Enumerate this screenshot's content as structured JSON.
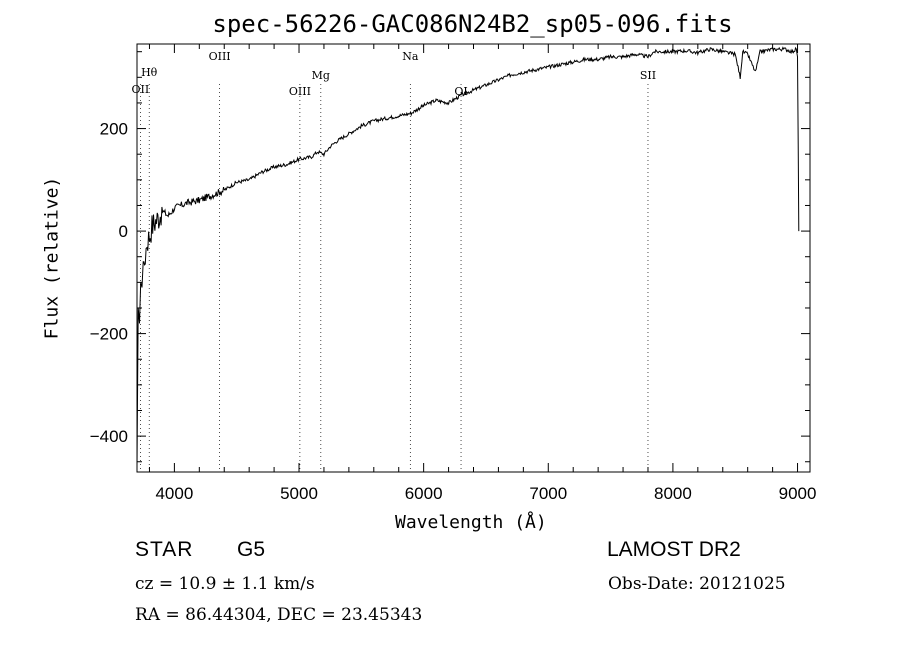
{
  "chart_data": {
    "type": "line",
    "title": "spec-56226-GAC086N24B2_sp05-096.fits",
    "xlabel": "Wavelength (Å)",
    "ylabel": "Flux (relative)",
    "xlim": [
      3700,
      9100
    ],
    "ylim": [
      -470,
      365
    ],
    "xticks": [
      4000,
      5000,
      6000,
      7000,
      8000,
      9000
    ],
    "xtick_labels": [
      "4000",
      "5000",
      "6000",
      "7000",
      "8000",
      "9000"
    ],
    "yticks": [
      -400,
      -200,
      0,
      200
    ],
    "ytick_labels": [
      "−400",
      "−200",
      "0",
      "200"
    ],
    "grid": false,
    "series": [
      {
        "x": [
          3700,
          3705,
          3710,
          3720,
          3730,
          3740,
          3750,
          3760,
          3780,
          3800,
          3820,
          3850,
          3880,
          3900,
          3950,
          4000,
          4050,
          4100,
          4200,
          4300,
          4400,
          4500,
          4600,
          4700,
          4800,
          4900,
          5000,
          5100,
          5150,
          5200,
          5250,
          5300,
          5400,
          5500,
          5600,
          5700,
          5800,
          5900,
          6000,
          6100,
          6200,
          6300,
          6400,
          6500,
          6600,
          6700,
          6800,
          6900,
          7000,
          7100,
          7200,
          7300,
          7400,
          7500,
          7600,
          7700,
          7800,
          7850,
          7900,
          8000,
          8100,
          8200,
          8300,
          8400,
          8500,
          8540,
          8560,
          8600,
          8662,
          8700,
          8800,
          8900,
          8960,
          8990,
          9000,
          9010
        ],
        "y": [
          -460,
          -300,
          -150,
          -180,
          -100,
          -110,
          -60,
          -60,
          -20,
          -10,
          10,
          20,
          30,
          40,
          30,
          45,
          50,
          55,
          60,
          70,
          80,
          95,
          100,
          115,
          125,
          130,
          140,
          145,
          155,
          150,
          165,
          175,
          190,
          205,
          215,
          220,
          225,
          230,
          245,
          255,
          250,
          265,
          275,
          285,
          295,
          305,
          310,
          315,
          320,
          325,
          330,
          335,
          335,
          340,
          340,
          345,
          340,
          350,
          350,
          350,
          352,
          348,
          355,
          350,
          345,
          300,
          350,
          345,
          310,
          350,
          355,
          355,
          350,
          355,
          340,
          0
        ]
      }
    ],
    "lines": [
      {
        "label": "Hθ",
        "x": 3798
      },
      {
        "label": "OII",
        "x": 3727
      },
      {
        "label": "OIII",
        "x": 4363
      },
      {
        "label": "OIII",
        "x": 5007
      },
      {
        "label": "Mg",
        "x": 5175
      },
      {
        "label": "Na",
        "x": 5893
      },
      {
        "label": "OI",
        "x": 6300
      },
      {
        "label": "SII",
        "x": 7800
      }
    ]
  },
  "info": {
    "class": "STAR",
    "subclass": "G5",
    "survey": "LAMOST DR2",
    "cz": "cz = 10.9 ± 1.1 km/s",
    "obs_date": "Obs-Date: 20121025",
    "radec": "RA =  86.44304, DEC =  23.45343"
  }
}
